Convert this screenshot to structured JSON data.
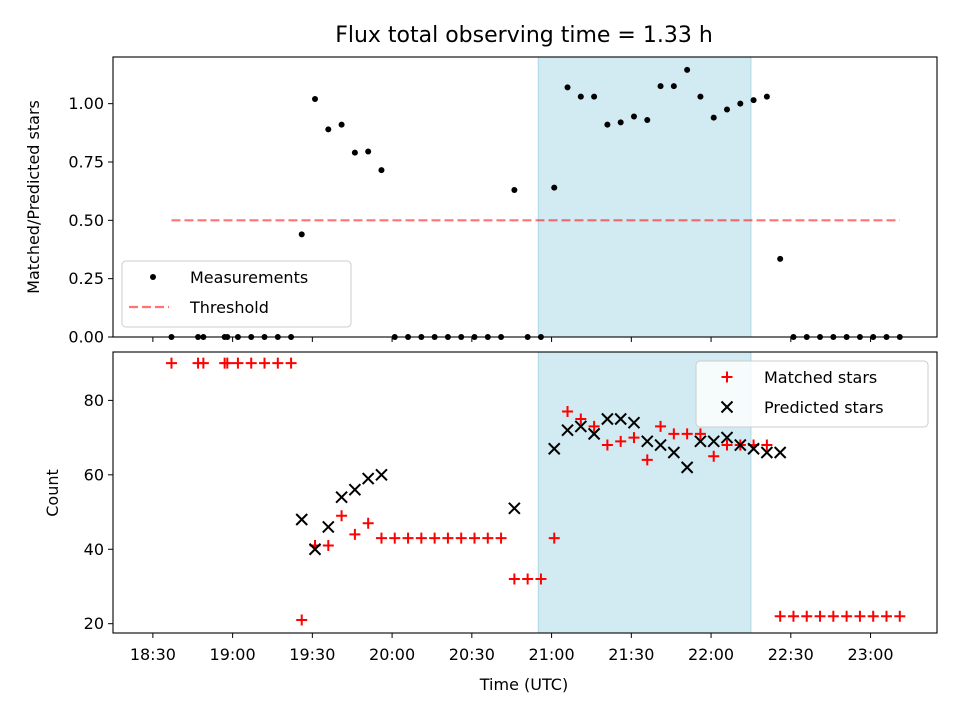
{
  "title": "Flux total observing time = 1.33 h",
  "colors": {
    "highlight": "#add8e6",
    "threshold": "#ff0000",
    "matched": "#ff0000",
    "predicted": "#000000",
    "measurements": "#000000"
  },
  "chart_data": [
    {
      "type": "scatter",
      "ylabel": "Matched/Predicted stars",
      "ylim": [
        0,
        1.2
      ],
      "xlim": [
        "18:15",
        "23:25"
      ],
      "yticks": [
        "0.00",
        "0.25",
        "0.50",
        "0.75",
        "1.00"
      ],
      "highlight_span": [
        "20:55",
        "22:15"
      ],
      "legend": {
        "placement": "lower left",
        "entries": [
          "Measurements",
          "Threshold"
        ]
      },
      "series": [
        {
          "name": "Measurements",
          "marker": "dot",
          "points": [
            [
              "18:37",
              0
            ],
            [
              "18:47",
              0
            ],
            [
              "18:49",
              0
            ],
            [
              "18:57",
              0
            ],
            [
              "18:58",
              0
            ],
            [
              "19:02",
              0
            ],
            [
              "19:07",
              0
            ],
            [
              "19:12",
              0
            ],
            [
              "19:17",
              0
            ],
            [
              "19:22",
              0
            ],
            [
              "19:26",
              0.44
            ],
            [
              "19:31",
              1.02
            ],
            [
              "19:36",
              0.89
            ],
            [
              "19:41",
              0.91
            ],
            [
              "19:46",
              0.79
            ],
            [
              "19:51",
              0.795
            ],
            [
              "19:56",
              0.715
            ],
            [
              "20:01",
              0
            ],
            [
              "20:06",
              0
            ],
            [
              "20:11",
              0
            ],
            [
              "20:16",
              0
            ],
            [
              "20:21",
              0
            ],
            [
              "20:26",
              0
            ],
            [
              "20:31",
              0
            ],
            [
              "20:36",
              0
            ],
            [
              "20:41",
              0
            ],
            [
              "20:46",
              0.63
            ],
            [
              "20:51",
              0
            ],
            [
              "20:56",
              0
            ],
            [
              "21:01",
              0.64
            ],
            [
              "21:06",
              1.07
            ],
            [
              "21:11",
              1.03
            ],
            [
              "21:16",
              1.03
            ],
            [
              "21:21",
              0.91
            ],
            [
              "21:26",
              0.92
            ],
            [
              "21:31",
              0.945
            ],
            [
              "21:36",
              0.93
            ],
            [
              "21:41",
              1.075
            ],
            [
              "21:46",
              1.075
            ],
            [
              "21:51",
              1.145
            ],
            [
              "21:56",
              1.03
            ],
            [
              "22:01",
              0.94
            ],
            [
              "22:06",
              0.975
            ],
            [
              "22:11",
              1.0
            ],
            [
              "22:16",
              1.015
            ],
            [
              "22:21",
              1.03
            ],
            [
              "22:26",
              0.335
            ],
            [
              "22:31",
              0
            ],
            [
              "22:36",
              0
            ],
            [
              "22:41",
              0
            ],
            [
              "22:46",
              0
            ],
            [
              "22:51",
              0
            ],
            [
              "22:56",
              0
            ],
            [
              "23:01",
              0
            ],
            [
              "23:06",
              0
            ],
            [
              "23:11",
              0
            ]
          ]
        },
        {
          "name": "Threshold",
          "type": "line",
          "style": "dashed",
          "x": [
            "18:37",
            "23:11"
          ],
          "values": [
            0.5,
            0.5
          ]
        }
      ]
    },
    {
      "type": "scatter",
      "xlabel": "Time (UTC)",
      "ylabel": "Count",
      "ylim": [
        17.5,
        93
      ],
      "xlim": [
        "18:15",
        "23:25"
      ],
      "yticks": [
        "20",
        "40",
        "60",
        "80"
      ],
      "xticks": [
        "18:30",
        "19:00",
        "19:30",
        "20:00",
        "20:30",
        "21:00",
        "21:30",
        "22:00",
        "22:30",
        "23:00"
      ],
      "highlight_span": [
        "20:55",
        "22:15"
      ],
      "legend": {
        "placement": "upper right",
        "entries": [
          "Matched stars",
          "Predicted stars"
        ]
      },
      "series": [
        {
          "name": "Matched stars",
          "marker": "plus",
          "points": [
            [
              "18:37",
              90
            ],
            [
              "18:47",
              90
            ],
            [
              "18:49",
              90
            ],
            [
              "18:57",
              90
            ],
            [
              "18:58",
              90
            ],
            [
              "19:02",
              90
            ],
            [
              "19:07",
              90
            ],
            [
              "19:12",
              90
            ],
            [
              "19:17",
              90
            ],
            [
              "19:22",
              90
            ],
            [
              "19:26",
              21
            ],
            [
              "19:31",
              41
            ],
            [
              "19:36",
              41
            ],
            [
              "19:41",
              49
            ],
            [
              "19:46",
              44
            ],
            [
              "19:51",
              47
            ],
            [
              "19:56",
              43
            ],
            [
              "20:01",
              43
            ],
            [
              "20:06",
              43
            ],
            [
              "20:11",
              43
            ],
            [
              "20:16",
              43
            ],
            [
              "20:21",
              43
            ],
            [
              "20:26",
              43
            ],
            [
              "20:31",
              43
            ],
            [
              "20:36",
              43
            ],
            [
              "20:41",
              43
            ],
            [
              "20:46",
              32
            ],
            [
              "20:51",
              32
            ],
            [
              "20:56",
              32
            ],
            [
              "21:01",
              43
            ],
            [
              "21:06",
              77
            ],
            [
              "21:11",
              75
            ],
            [
              "21:16",
              73
            ],
            [
              "21:21",
              68
            ],
            [
              "21:26",
              69
            ],
            [
              "21:31",
              70
            ],
            [
              "21:36",
              64
            ],
            [
              "21:41",
              73
            ],
            [
              "21:46",
              71
            ],
            [
              "21:51",
              71
            ],
            [
              "21:56",
              71
            ],
            [
              "22:01",
              65
            ],
            [
              "22:06",
              68
            ],
            [
              "22:11",
              68
            ],
            [
              "22:16",
              68
            ],
            [
              "22:21",
              68
            ],
            [
              "22:26",
              22
            ],
            [
              "22:31",
              22
            ],
            [
              "22:36",
              22
            ],
            [
              "22:41",
              22
            ],
            [
              "22:46",
              22
            ],
            [
              "22:51",
              22
            ],
            [
              "22:56",
              22
            ],
            [
              "23:01",
              22
            ],
            [
              "23:06",
              22
            ],
            [
              "23:11",
              22
            ]
          ]
        },
        {
          "name": "Predicted stars",
          "marker": "x",
          "points": [
            [
              "19:26",
              48
            ],
            [
              "19:31",
              40
            ],
            [
              "19:36",
              46
            ],
            [
              "19:41",
              54
            ],
            [
              "19:46",
              56
            ],
            [
              "19:51",
              59
            ],
            [
              "19:56",
              60
            ],
            [
              "20:46",
              51
            ],
            [
              "21:01",
              67
            ],
            [
              "21:06",
              72
            ],
            [
              "21:11",
              73
            ],
            [
              "21:16",
              71
            ],
            [
              "21:21",
              75
            ],
            [
              "21:26",
              75
            ],
            [
              "21:31",
              74
            ],
            [
              "21:36",
              69
            ],
            [
              "21:41",
              68
            ],
            [
              "21:46",
              66
            ],
            [
              "21:51",
              62
            ],
            [
              "21:56",
              69
            ],
            [
              "22:01",
              69
            ],
            [
              "22:06",
              70
            ],
            [
              "22:11",
              68
            ],
            [
              "22:16",
              67
            ],
            [
              "22:21",
              66
            ],
            [
              "22:26",
              66
            ]
          ]
        }
      ]
    }
  ]
}
